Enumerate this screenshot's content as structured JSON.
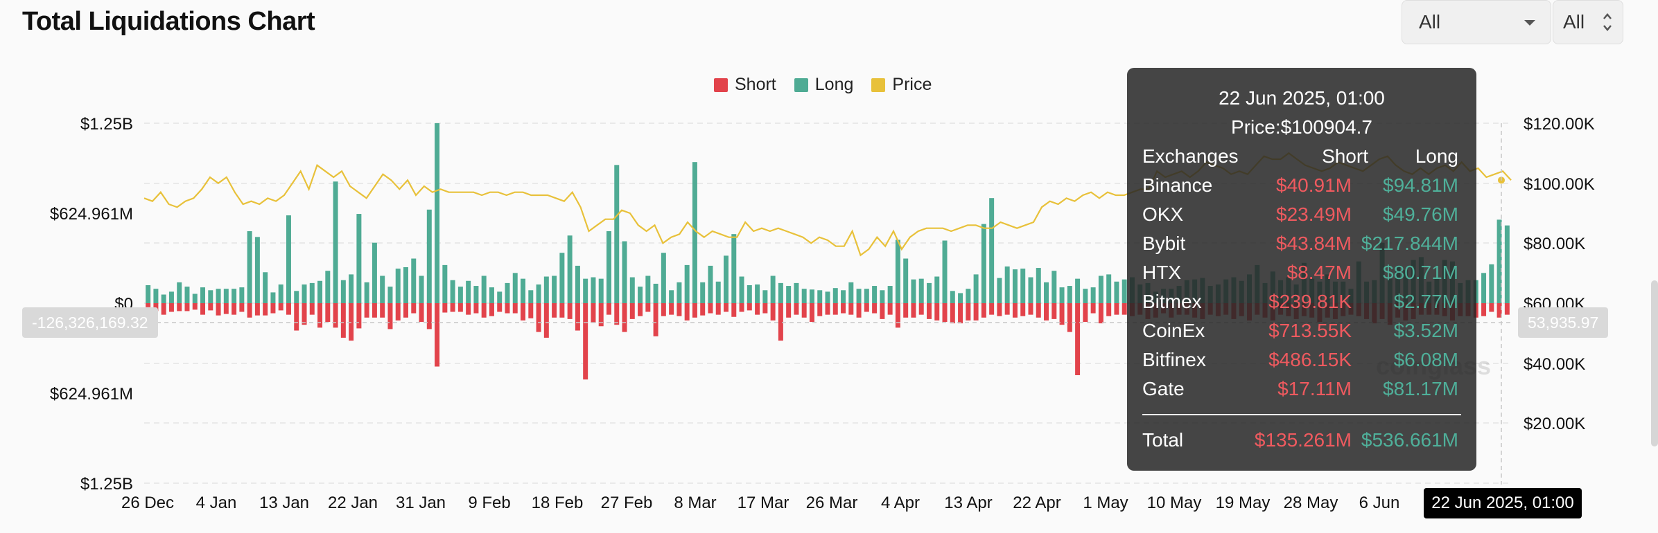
{
  "page_title": "Total Liquidations Chart",
  "filters": {
    "exchange_select": "All",
    "coin_select": "All"
  },
  "colors": {
    "short": "#e2434b",
    "long": "#4fab94",
    "price": "#e8c13a"
  },
  "legend": [
    {
      "label": "Short",
      "color": "#e2434b"
    },
    {
      "label": "Long",
      "color": "#4fab94"
    },
    {
      "label": "Price",
      "color": "#e8c13a"
    }
  ],
  "crosshair": {
    "left_value": "-126,326,169.32",
    "right_value": "53,935.97",
    "x_value": "22 Jun 2025, 01:00"
  },
  "watermark": "coinglass",
  "tooltip": {
    "date": "22 Jun 2025, 01:00",
    "price": "Price:$100904.7",
    "headers": {
      "exchange": "Exchanges",
      "short": "Short",
      "long": "Long"
    },
    "rows": [
      {
        "exchange": "Binance",
        "short": "$40.91M",
        "long": "$94.81M"
      },
      {
        "exchange": "OKX",
        "short": "$23.49M",
        "long": "$49.76M"
      },
      {
        "exchange": "Bybit",
        "short": "$43.84M",
        "long": "$217.844M"
      },
      {
        "exchange": "HTX",
        "short": "$8.47M",
        "long": "$80.71M"
      },
      {
        "exchange": "Bitmex",
        "short": "$239.81K",
        "long": "$2.77M"
      },
      {
        "exchange": "CoinEx",
        "short": "$713.55K",
        "long": "$3.52M"
      },
      {
        "exchange": "Bitfinex",
        "short": "$486.15K",
        "long": "$6.08M"
      },
      {
        "exchange": "Gate",
        "short": "$17.11M",
        "long": "$81.17M"
      }
    ],
    "total": {
      "label": "Total",
      "short": "$135.261M",
      "long": "$536.661M"
    }
  },
  "chart_data": {
    "type": "bar",
    "x_tick_labels": [
      "26 Dec",
      "4 Jan",
      "13 Jan",
      "22 Jan",
      "31 Jan",
      "9 Feb",
      "18 Feb",
      "27 Feb",
      "8 Mar",
      "17 Mar",
      "26 Mar",
      "4 Apr",
      "13 Apr",
      "22 Apr",
      "1 May",
      "10 May",
      "19 May",
      "28 May",
      "6 Jun"
    ],
    "left_axis": {
      "tick_labels": [
        "$1.25B",
        "$624.961M",
        "$0",
        "$624.961M",
        "$1.25B"
      ],
      "range": [
        -1250000000,
        1250000000
      ]
    },
    "right_axis": {
      "tick_labels": [
        "$120.00K",
        "$100.00K",
        "$80.00K",
        "$60.00K",
        "$40.00K",
        "$20.00K"
      ],
      "range": [
        0,
        120000
      ]
    },
    "series": [
      {
        "name": "Long",
        "values": [
          125,
          100,
          60,
          80,
          145,
          115,
          65,
          110,
          90,
          100,
          100,
          100,
          110,
          500,
          460,
          215,
          75,
          130,
          610,
          85,
          130,
          140,
          155,
          225,
          845,
          160,
          200,
          620,
          145,
          420,
          190,
          115,
          240,
          250,
          310,
          190,
          650,
          1250,
          265,
          160,
          115,
          155,
          120,
          190,
          110,
          80,
          140,
          210,
          170,
          90,
          130,
          185,
          190,
          350,
          470,
          260,
          170,
          180,
          170,
          500,
          960,
          430,
          180,
          115,
          190,
          135,
          350,
          90,
          145,
          265,
          980,
          145,
          260,
          150,
          330,
          480,
          185,
          125,
          130,
          90,
          190,
          140,
          120,
          140,
          100,
          95,
          90,
          80,
          105,
          90,
          145,
          100,
          100,
          120,
          90,
          120,
          440,
          310,
          165,
          170,
          140,
          185,
          435,
          85,
          70,
          100,
          200,
          550,
          730,
          175,
          255,
          235,
          240,
          180,
          245,
          145,
          225,
          110,
          120,
          170,
          100,
          110,
          190,
          200,
          150,
          165,
          180,
          130,
          140,
          80,
          100,
          100,
          120,
          160,
          165,
          175,
          120,
          130,
          165,
          180,
          155,
          200,
          265,
          140,
          220,
          160,
          180,
          130,
          280,
          170,
          150,
          200,
          150,
          150,
          100,
          290,
          150,
          160,
          420,
          170,
          250,
          230,
          300,
          320,
          150,
          175,
          300,
          290,
          140,
          160,
          160,
          210,
          270,
          580,
          540
        ],
        "values_unit": "$M"
      },
      {
        "name": "Short",
        "values": [
          28,
          55,
          80,
          60,
          55,
          55,
          45,
          80,
          50,
          85,
          75,
          80,
          60,
          100,
          85,
          85,
          70,
          50,
          80,
          190,
          150,
          80,
          170,
          130,
          170,
          240,
          260,
          175,
          100,
          100,
          100,
          180,
          120,
          100,
          70,
          130,
          180,
          440,
          65,
          60,
          60,
          80,
          70,
          100,
          90,
          60,
          70,
          70,
          120,
          105,
          200,
          240,
          100,
          100,
          110,
          190,
          530,
          135,
          160,
          80,
          150,
          200,
          110,
          90,
          60,
          230,
          90,
          80,
          90,
          120,
          100,
          85,
          70,
          80,
          60,
          95,
          60,
          50,
          80,
          70,
          120,
          260,
          100,
          80,
          100,
          130,
          90,
          80,
          80,
          70,
          80,
          100,
          60,
          70,
          110,
          80,
          170,
          100,
          100,
          80,
          110,
          120,
          130,
          140,
          140,
          120,
          120,
          100,
          80,
          90,
          80,
          100,
          90,
          80,
          100,
          120,
          110,
          150,
          200,
          500,
          130,
          70,
          140,
          90,
          80,
          80,
          90,
          80,
          110,
          100,
          70,
          100,
          80,
          80,
          100,
          110,
          80,
          90,
          80,
          110,
          90,
          120,
          80,
          100,
          120,
          80,
          90,
          110,
          90,
          100,
          130,
          100,
          110,
          90,
          80,
          90,
          110,
          140,
          110,
          150,
          100,
          120,
          110,
          80,
          80,
          80,
          90,
          120,
          90,
          90,
          100,
          90,
          60,
          100,
          80
        ],
        "values_unit": "$M"
      },
      {
        "name": "Price",
        "values": [
          95,
          94,
          97,
          93,
          92,
          94,
          95,
          98,
          102,
          100,
          102,
          97,
          93,
          94,
          93,
          95,
          94,
          96,
          100,
          104,
          98,
          106,
          104,
          102,
          104,
          99,
          97,
          95,
          99,
          103,
          101,
          98,
          101,
          96,
          99,
          97,
          98,
          97,
          97,
          97,
          97,
          96,
          97,
          97,
          96,
          97,
          97,
          96,
          96,
          96,
          95,
          94,
          97,
          92,
          84,
          86,
          88,
          88,
          91,
          90,
          86,
          84,
          86,
          80,
          82,
          83,
          87,
          84,
          82,
          84,
          83,
          82,
          82,
          87,
          84,
          85,
          84,
          85,
          84,
          83,
          82,
          80,
          82,
          81,
          79,
          79,
          84,
          76,
          78,
          82,
          79,
          84,
          78,
          82,
          84,
          85,
          85,
          85,
          84,
          85,
          86,
          86,
          85,
          85,
          87,
          86,
          85,
          86,
          87,
          92,
          94,
          93,
          95,
          94,
          96,
          97,
          95,
          97,
          96,
          96,
          97,
          98,
          98,
          104,
          102,
          103,
          104,
          102,
          104,
          107,
          106,
          105,
          103,
          104,
          103,
          106,
          109,
          108,
          108,
          110,
          108,
          106,
          105,
          104,
          105,
          107,
          106,
          105,
          104,
          106,
          108,
          109,
          106,
          104,
          103,
          105,
          103,
          105,
          106,
          104,
          107,
          104,
          105,
          102,
          103,
          104,
          101
        ],
        "values_unit": "$K"
      }
    ]
  }
}
